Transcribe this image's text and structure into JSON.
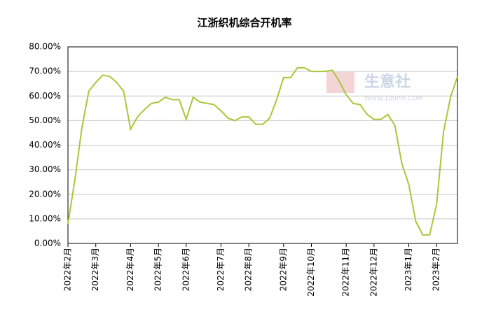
{
  "chart_data": {
    "type": "line",
    "title": "江浙织机综合开机率",
    "categories": [
      "2022年2月",
      null,
      null,
      null,
      "2022年3月",
      null,
      null,
      null,
      null,
      "2022年4月",
      null,
      null,
      null,
      "2022年5月",
      null,
      null,
      null,
      "2022年6月",
      null,
      null,
      null,
      null,
      "2022年7月",
      null,
      null,
      null,
      "2022年8月",
      null,
      null,
      null,
      null,
      "2022年9月",
      null,
      null,
      null,
      "2022年10月",
      null,
      null,
      null,
      null,
      "2022年11月",
      null,
      null,
      null,
      "2022年12月",
      null,
      null,
      null,
      null,
      "2023年1月",
      null,
      null,
      null,
      "2023年2月",
      null,
      null,
      null
    ],
    "series": [
      {
        "name": "江浙织机综合开机率",
        "color": "#a8c83a",
        "values": [
          8,
          26,
          47,
          62,
          65.5,
          68.5,
          68,
          65.5,
          62,
          46.5,
          51.5,
          54.5,
          57,
          57.5,
          59.5,
          58.5,
          58.5,
          50.5,
          59.5,
          57.5,
          57,
          56.5,
          54,
          51,
          50,
          51.5,
          51.5,
          48.5,
          48.5,
          51,
          58.5,
          67.5,
          67.5,
          71.5,
          71.5,
          70,
          70,
          70,
          70.5,
          66,
          60.5,
          57,
          56.5,
          52.5,
          50.5,
          50.5,
          52.5,
          48,
          32.5,
          24,
          9,
          3.5,
          3.5,
          16,
          45.5,
          59.5,
          68
        ]
      }
    ],
    "ylim": [
      0,
      80
    ],
    "yticks": [
      {
        "value": 0,
        "label": "0.00%"
      },
      {
        "value": 10,
        "label": "10.00%"
      },
      {
        "value": 20,
        "label": "20.00%"
      },
      {
        "value": 30,
        "label": "30.00%"
      },
      {
        "value": 40,
        "label": "40.00%"
      },
      {
        "value": 50,
        "label": "50.00%"
      },
      {
        "value": 60,
        "label": "60.00%"
      },
      {
        "value": 70,
        "label": "70.00%"
      },
      {
        "value": 80,
        "label": "80.00%"
      }
    ],
    "grid": true,
    "watermark": {
      "name": "生意社",
      "url": "WWW.100PPI.COM"
    }
  }
}
